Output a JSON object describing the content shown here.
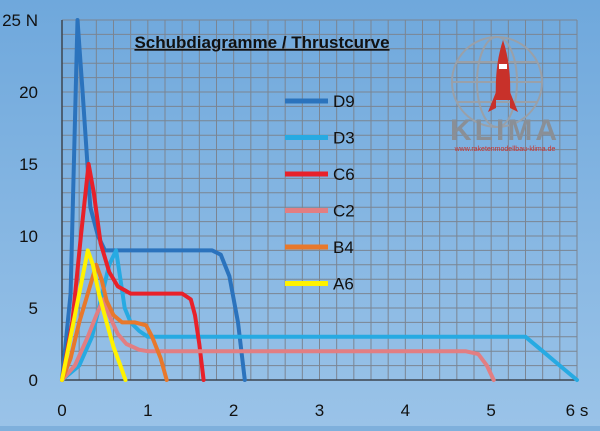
{
  "chart_data": {
    "type": "line",
    "title": "Schubdiagramme / Thrustcurve",
    "xlabel": "",
    "ylabel": "",
    "xlim": [
      0,
      6
    ],
    "ylim": [
      0,
      25
    ],
    "x_ticks": [
      0,
      1,
      2,
      3,
      4,
      5,
      6
    ],
    "x_tick_labels": [
      "0",
      "1",
      "2",
      "3",
      "4",
      "5",
      "6 s"
    ],
    "y_ticks": [
      0,
      5,
      10,
      15,
      20,
      25
    ],
    "y_tick_labels": [
      "0",
      "5",
      "10",
      "15",
      "20",
      "25 N"
    ],
    "grid": true,
    "legend_position": "center",
    "series": [
      {
        "name": "D9",
        "color": "#2b73bd",
        "points": [
          [
            0,
            0
          ],
          [
            0.1,
            6
          ],
          [
            0.18,
            25
          ],
          [
            0.24,
            20
          ],
          [
            0.33,
            12
          ],
          [
            0.42,
            10
          ],
          [
            0.5,
            9
          ],
          [
            0.6,
            9
          ],
          [
            1.0,
            9
          ],
          [
            1.5,
            9
          ],
          [
            1.75,
            9
          ],
          [
            1.85,
            8.7
          ],
          [
            1.95,
            7.2
          ],
          [
            2.05,
            4
          ],
          [
            2.13,
            0
          ]
        ]
      },
      {
        "name": "D3",
        "color": "#27aae2",
        "points": [
          [
            0,
            0
          ],
          [
            0.2,
            1
          ],
          [
            0.35,
            3
          ],
          [
            0.45,
            5.5
          ],
          [
            0.55,
            8
          ],
          [
            0.63,
            9
          ],
          [
            0.68,
            7
          ],
          [
            0.73,
            5
          ],
          [
            0.8,
            4
          ],
          [
            0.9,
            3.4
          ],
          [
            1.0,
            3
          ],
          [
            2.0,
            3
          ],
          [
            3.0,
            3
          ],
          [
            4.0,
            3
          ],
          [
            5.0,
            3
          ],
          [
            5.4,
            3
          ],
          [
            5.6,
            2
          ],
          [
            5.8,
            1
          ],
          [
            6.0,
            0
          ]
        ]
      },
      {
        "name": "C6",
        "color": "#e8212a",
        "points": [
          [
            0,
            0
          ],
          [
            0.12,
            4
          ],
          [
            0.22,
            10
          ],
          [
            0.31,
            15
          ],
          [
            0.37,
            13
          ],
          [
            0.45,
            9.5
          ],
          [
            0.55,
            7.5
          ],
          [
            0.65,
            6.5
          ],
          [
            0.8,
            6
          ],
          [
            1.0,
            6
          ],
          [
            1.2,
            6
          ],
          [
            1.4,
            6
          ],
          [
            1.5,
            5.6
          ],
          [
            1.55,
            4.5
          ],
          [
            1.6,
            2.5
          ],
          [
            1.65,
            0
          ]
        ]
      },
      {
        "name": "C2",
        "color": "#e27e82",
        "points": [
          [
            0,
            0
          ],
          [
            0.15,
            1
          ],
          [
            0.3,
            3
          ],
          [
            0.4,
            4.5
          ],
          [
            0.48,
            5.6
          ],
          [
            0.55,
            4.5
          ],
          [
            0.65,
            3.2
          ],
          [
            0.75,
            2.5
          ],
          [
            0.9,
            2.1
          ],
          [
            1.0,
            2
          ],
          [
            2.0,
            2
          ],
          [
            3.0,
            2
          ],
          [
            4.0,
            2
          ],
          [
            4.7,
            2
          ],
          [
            4.85,
            1.8
          ],
          [
            4.95,
            1
          ],
          [
            5.03,
            0
          ]
        ]
      },
      {
        "name": "B4",
        "color": "#e8782b",
        "points": [
          [
            0,
            0
          ],
          [
            0.1,
            1.5
          ],
          [
            0.2,
            4
          ],
          [
            0.3,
            6
          ],
          [
            0.4,
            8
          ],
          [
            0.46,
            7
          ],
          [
            0.52,
            5.5
          ],
          [
            0.6,
            4.5
          ],
          [
            0.7,
            4
          ],
          [
            0.85,
            4
          ],
          [
            0.98,
            3.8
          ],
          [
            1.05,
            3
          ],
          [
            1.15,
            1.5
          ],
          [
            1.22,
            0
          ]
        ]
      },
      {
        "name": "A6",
        "color": "#fff200",
        "points": [
          [
            0,
            0
          ],
          [
            0.1,
            3
          ],
          [
            0.2,
            6
          ],
          [
            0.3,
            9
          ],
          [
            0.36,
            8
          ],
          [
            0.43,
            6
          ],
          [
            0.52,
            4
          ],
          [
            0.6,
            2.3
          ],
          [
            0.68,
            1
          ],
          [
            0.74,
            0
          ]
        ]
      }
    ]
  },
  "logo": {
    "wordmark": "KLIMA",
    "url": "www.raketenmodellbau-klima.de"
  }
}
